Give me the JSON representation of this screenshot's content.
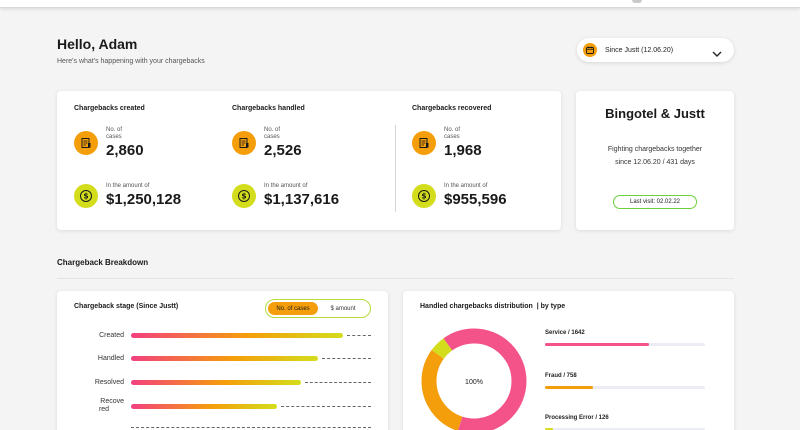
{
  "greeting": {
    "title": "Hello, Adam",
    "subtitle": "Here's what's happening with your chargebacks"
  },
  "date_filter": {
    "label": "Since Justt (12.06.20)",
    "icon": "calendar-icon"
  },
  "stats": [
    {
      "title": "Chargebacks created",
      "cases_label": "No. of cases",
      "cases": "2,860",
      "amount_label": "In the amount of",
      "amount": "$1,250,128"
    },
    {
      "title": "Chargebacks handled",
      "cases_label": "No. of cases",
      "cases": "2,526",
      "amount_label": "In the amount of",
      "amount": "$1,137,616"
    },
    {
      "title": "Chargebacks recovered",
      "cases_label": "No. of cases",
      "cases": "1,968",
      "amount_label": "In the amount of",
      "amount": "$955,596"
    }
  ],
  "company": {
    "name": "Bingotel & Justt",
    "line1": "Fighting chargebacks together",
    "line2": "since 12.06.20  /  431 days",
    "last_visit": "Last visit: 02.02.22"
  },
  "breakdown": {
    "section_title": "Chargeback Breakdown",
    "stage": {
      "title": "Chargeback stage (Since Justt)",
      "toggle_on": "No. of cases",
      "toggle_off": "$ amount",
      "bars": [
        {
          "label": "Created",
          "value": 2860
        },
        {
          "label": "Handled",
          "value": 2526
        },
        {
          "label": "Resolved",
          "value": 2290
        },
        {
          "label": "Recove red",
          "value": 1968
        }
      ],
      "max": 2860
    },
    "distribution": {
      "title": "Handled chargebacks distribution",
      "title_suffix": "by type",
      "center_label": "100%",
      "items": [
        {
          "name": "Service",
          "count": "1642",
          "share": 0.65,
          "color": "#f4538a"
        },
        {
          "name": "Fraud",
          "count": "758",
          "share": 0.3,
          "color": "#f59e0b"
        },
        {
          "name": "Processing Error",
          "count": "126",
          "share": 0.05,
          "color": "#d4dd1c"
        }
      ]
    }
  },
  "colors": {
    "orange": "#f59e0b",
    "yellow": "#d4dd1c",
    "pink": "#f4538a",
    "green": "#6ad13d"
  }
}
